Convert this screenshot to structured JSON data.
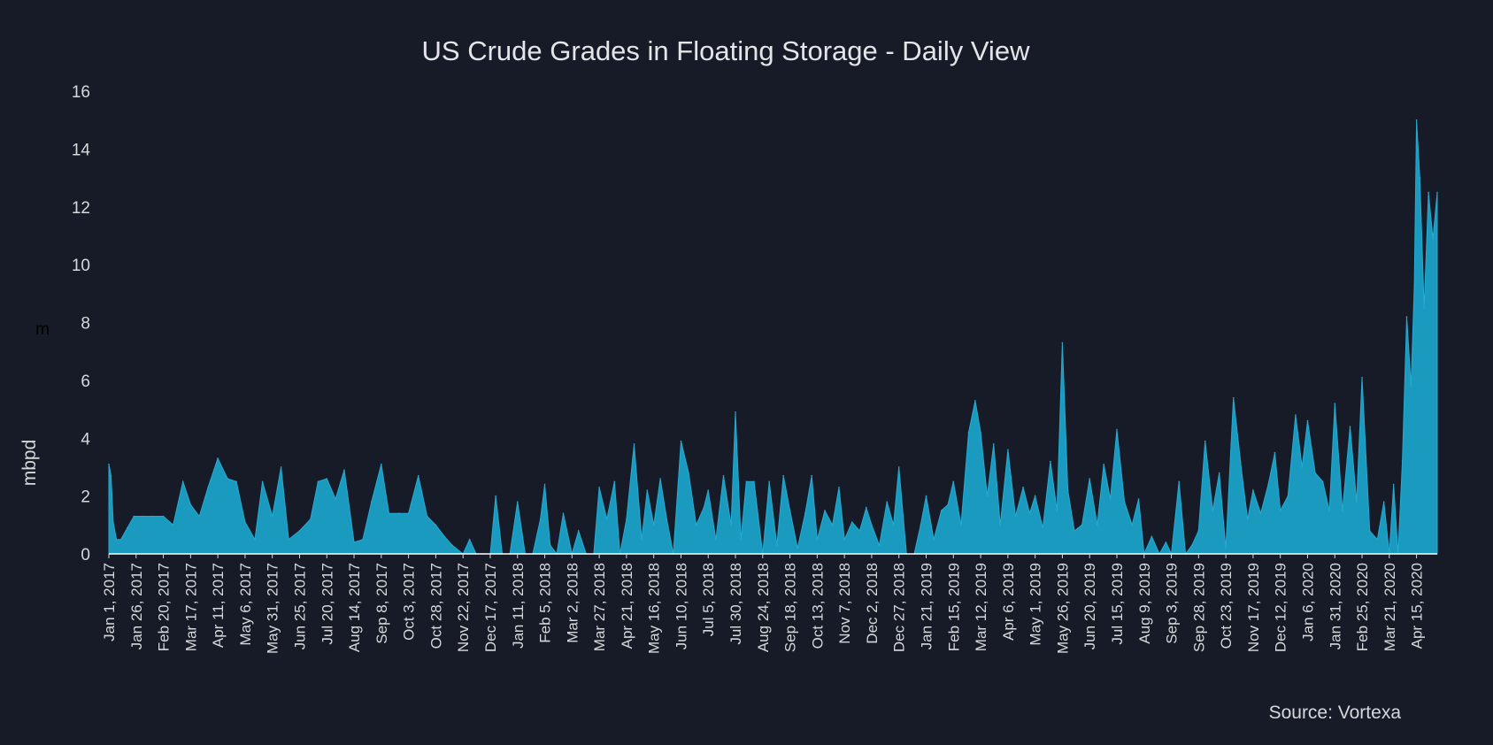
{
  "colors": {
    "background": "#161b27",
    "area_fill": "#1a9abf",
    "area_stroke": "#28a9d0",
    "text": "#d6d8dc",
    "baseline": "#ffffff"
  },
  "source_label": "Source:  Vortexa",
  "unit_label": "m",
  "chart_data": {
    "type": "area",
    "title": "US Crude Grades in Floating Storage - Daily View",
    "xlabel": "",
    "ylabel": "mbpd",
    "ylim": [
      0,
      16
    ],
    "xlim": [
      "2017-01-01",
      "2020-05-04"
    ],
    "y_ticks": [
      0,
      2,
      4,
      6,
      8,
      10,
      12,
      14,
      16
    ],
    "grid": false,
    "legend": "none",
    "x_tick_labels": [
      "Jan 1, 2017",
      "Jan 26, 2017",
      "Feb 20, 2017",
      "Mar 17, 2017",
      "Apr 11, 2017",
      "May 6, 2017",
      "May 31, 2017",
      "Jun 25, 2017",
      "Jul 20, 2017",
      "Aug 14, 2017",
      "Sep 8, 2017",
      "Oct 3, 2017",
      "Oct 28, 2017",
      "Nov 22, 2017",
      "Dec 17, 2017",
      "Jan 11, 2018",
      "Feb 5, 2018",
      "Mar 2, 2018",
      "Mar 27, 2018",
      "Apr 21, 2018",
      "May 16, 2018",
      "Jun 10, 2018",
      "Jul 5, 2018",
      "Jul 30, 2018",
      "Aug 24, 2018",
      "Sep 18, 2018",
      "Oct 13, 2018",
      "Nov 7, 2018",
      "Dec 2, 2018",
      "Dec 27, 2018",
      "Jan 21, 2019",
      "Feb 15, 2019",
      "Mar 12, 2019",
      "Apr 6, 2019",
      "May 1, 2019",
      "May 26, 2019",
      "Jun 20, 2019",
      "Jul 15, 2019",
      "Aug 9, 2019",
      "Sep 3, 2019",
      "Sep 28, 2019",
      "Oct 23, 2019",
      "Nov 17, 2019",
      "Dec 12, 2019",
      "Jan 6, 2020",
      "Jan 31, 2020",
      "Feb 25, 2020",
      "Mar 21, 2020",
      "Apr 15, 2020"
    ],
    "x_tick_dates": [
      "2017-01-01",
      "2017-01-26",
      "2017-02-20",
      "2017-03-17",
      "2017-04-11",
      "2017-05-06",
      "2017-05-31",
      "2017-06-25",
      "2017-07-20",
      "2017-08-14",
      "2017-09-08",
      "2017-10-03",
      "2017-10-28",
      "2017-11-22",
      "2017-12-17",
      "2018-01-11",
      "2018-02-05",
      "2018-03-02",
      "2018-03-27",
      "2018-04-21",
      "2018-05-16",
      "2018-06-10",
      "2018-07-05",
      "2018-07-30",
      "2018-08-24",
      "2018-09-18",
      "2018-10-13",
      "2018-11-07",
      "2018-12-02",
      "2018-12-27",
      "2019-01-21",
      "2019-02-15",
      "2019-03-12",
      "2019-04-06",
      "2019-05-01",
      "2019-05-26",
      "2019-06-20",
      "2019-07-15",
      "2019-08-09",
      "2019-09-03",
      "2019-09-28",
      "2019-10-23",
      "2019-11-17",
      "2019-12-12",
      "2020-01-06",
      "2020-01-31",
      "2020-02-25",
      "2020-03-21",
      "2020-04-15"
    ],
    "series": [
      {
        "x": [
          "2017-01-01",
          "2017-01-03",
          "2017-01-05",
          "2017-01-08",
          "2017-01-12",
          "2017-01-18",
          "2017-01-24",
          "2017-02-01",
          "2017-02-10",
          "2017-02-20",
          "2017-03-01",
          "2017-03-10",
          "2017-03-17",
          "2017-03-25",
          "2017-04-02",
          "2017-04-11",
          "2017-04-20",
          "2017-04-28",
          "2017-05-06",
          "2017-05-15",
          "2017-05-22",
          "2017-05-31",
          "2017-06-08",
          "2017-06-15",
          "2017-06-25",
          "2017-07-05",
          "2017-07-12",
          "2017-07-20",
          "2017-07-28",
          "2017-08-05",
          "2017-08-14",
          "2017-08-22",
          "2017-08-30",
          "2017-09-08",
          "2017-09-15",
          "2017-09-24",
          "2017-10-03",
          "2017-10-12",
          "2017-10-20",
          "2017-10-28",
          "2017-11-05",
          "2017-11-12",
          "2017-11-22",
          "2017-11-28",
          "2017-12-04",
          "2017-12-10",
          "2017-12-17",
          "2017-12-22",
          "2017-12-28",
          "2018-01-04",
          "2018-01-11",
          "2018-01-18",
          "2018-01-25",
          "2018-02-01",
          "2018-02-05",
          "2018-02-10",
          "2018-02-16",
          "2018-02-22",
          "2018-03-02",
          "2018-03-08",
          "2018-03-15",
          "2018-03-22",
          "2018-03-27",
          "2018-04-03",
          "2018-04-10",
          "2018-04-15",
          "2018-04-21",
          "2018-04-28",
          "2018-05-05",
          "2018-05-10",
          "2018-05-16",
          "2018-05-22",
          "2018-05-28",
          "2018-06-03",
          "2018-06-10",
          "2018-06-17",
          "2018-06-24",
          "2018-07-01",
          "2018-07-05",
          "2018-07-12",
          "2018-07-19",
          "2018-07-26",
          "2018-07-30",
          "2018-08-04",
          "2018-08-09",
          "2018-08-16",
          "2018-08-24",
          "2018-08-30",
          "2018-09-06",
          "2018-09-12",
          "2018-09-18",
          "2018-09-25",
          "2018-10-02",
          "2018-10-08",
          "2018-10-13",
          "2018-10-20",
          "2018-10-27",
          "2018-11-02",
          "2018-11-07",
          "2018-11-14",
          "2018-11-21",
          "2018-11-27",
          "2018-12-02",
          "2018-12-09",
          "2018-12-16",
          "2018-12-22",
          "2018-12-27",
          "2019-01-03",
          "2019-01-10",
          "2019-01-16",
          "2019-01-21",
          "2019-01-28",
          "2019-02-04",
          "2019-02-10",
          "2019-02-15",
          "2019-02-22",
          "2019-03-01",
          "2019-03-07",
          "2019-03-12",
          "2019-03-18",
          "2019-03-24",
          "2019-03-30",
          "2019-04-06",
          "2019-04-13",
          "2019-04-20",
          "2019-04-26",
          "2019-05-01",
          "2019-05-08",
          "2019-05-15",
          "2019-05-21",
          "2019-05-26",
          "2019-05-31",
          "2019-06-06",
          "2019-06-13",
          "2019-06-20",
          "2019-06-27",
          "2019-07-03",
          "2019-07-09",
          "2019-07-15",
          "2019-07-22",
          "2019-07-29",
          "2019-08-04",
          "2019-08-09",
          "2019-08-16",
          "2019-08-23",
          "2019-08-29",
          "2019-09-03",
          "2019-09-10",
          "2019-09-16",
          "2019-09-22",
          "2019-09-28",
          "2019-10-04",
          "2019-10-11",
          "2019-10-17",
          "2019-10-23",
          "2019-10-30",
          "2019-11-06",
          "2019-11-12",
          "2019-11-17",
          "2019-11-24",
          "2019-12-01",
          "2019-12-07",
          "2019-12-12",
          "2019-12-19",
          "2019-12-26",
          "2020-01-01",
          "2020-01-06",
          "2020-01-13",
          "2020-01-20",
          "2020-01-26",
          "2020-01-31",
          "2020-02-07",
          "2020-02-14",
          "2020-02-20",
          "2020-02-25",
          "2020-03-03",
          "2020-03-10",
          "2020-03-16",
          "2020-03-21",
          "2020-03-25",
          "2020-03-29",
          "2020-04-02",
          "2020-04-06",
          "2020-04-10",
          "2020-04-13",
          "2020-04-15",
          "2020-04-18",
          "2020-04-22",
          "2020-04-26",
          "2020-04-30",
          "2020-05-04"
        ],
        "values": [
          3.1,
          2.7,
          1.1,
          0.5,
          0.5,
          0.9,
          1.3,
          1.3,
          1.3,
          1.3,
          1.0,
          2.5,
          1.7,
          1.3,
          2.3,
          3.3,
          2.6,
          2.5,
          1.1,
          0.5,
          2.5,
          1.3,
          3.0,
          0.5,
          0.8,
          1.2,
          2.5,
          2.6,
          1.9,
          2.9,
          0.4,
          0.5,
          1.8,
          3.1,
          1.4,
          1.4,
          1.4,
          2.7,
          1.3,
          1.0,
          0.6,
          0.3,
          0.0,
          0.5,
          0.0,
          0.0,
          0.0,
          2.0,
          0.0,
          0.0,
          1.8,
          0.0,
          0.0,
          1.2,
          2.4,
          0.3,
          0.0,
          1.4,
          0.0,
          0.8,
          0.0,
          0.0,
          2.3,
          1.2,
          2.5,
          0.0,
          1.2,
          3.8,
          0.5,
          2.2,
          1.0,
          2.6,
          1.2,
          0.0,
          3.9,
          2.8,
          1.0,
          1.6,
          2.2,
          0.5,
          2.7,
          1.0,
          4.9,
          0.5,
          2.5,
          2.5,
          0.0,
          2.5,
          0.3,
          2.7,
          1.5,
          0.2,
          1.4,
          2.7,
          0.5,
          1.5,
          1.0,
          2.3,
          0.5,
          1.1,
          0.8,
          1.6,
          1.0,
          0.3,
          1.8,
          1.0,
          3.0,
          0.0,
          0.0,
          1.0,
          2.0,
          0.5,
          1.5,
          1.7,
          2.5,
          1.0,
          4.2,
          5.3,
          4.2,
          2.0,
          3.8,
          1.0,
          3.6,
          1.3,
          2.3,
          1.4,
          2.0,
          0.9,
          3.2,
          1.5,
          7.3,
          2.2,
          0.8,
          1.0,
          2.6,
          1.0,
          3.1,
          1.9,
          4.3,
          1.8,
          1.0,
          1.9,
          0.0,
          0.6,
          0.0,
          0.4,
          0.0,
          2.5,
          0.0,
          0.3,
          0.8,
          3.9,
          1.5,
          2.8,
          0.2,
          5.4,
          3.0,
          1.2,
          2.2,
          1.4,
          2.4,
          3.5,
          1.5,
          2.0,
          4.8,
          3.0,
          4.6,
          2.8,
          2.5,
          1.5,
          5.2,
          1.5,
          4.4,
          1.8,
          6.1,
          0.8,
          0.5,
          1.8,
          0.0,
          2.4,
          0.0,
          3.2,
          8.2,
          5.8,
          9.3,
          15.0,
          13.0,
          8.5,
          12.5,
          10.9,
          12.5
        ]
      }
    ]
  }
}
